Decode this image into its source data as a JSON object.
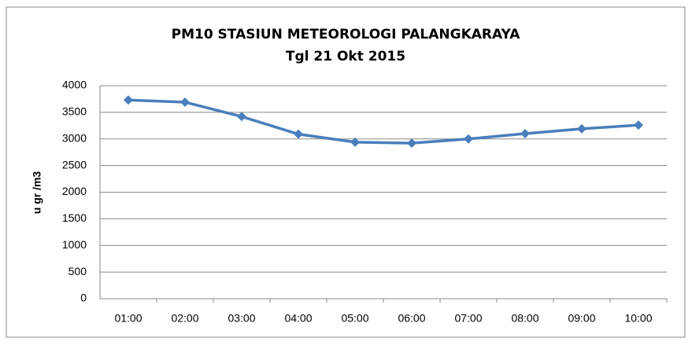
{
  "chart_data": {
    "type": "line",
    "title": "PM10 STASIUN METEOROLOGI PALANGKARAYA",
    "subtitle": "Tgl 21 Okt 2015",
    "y_label": "u gr /m3",
    "categories": [
      "01:00",
      "02:00",
      "03:00",
      "04:00",
      "05:00",
      "06:00",
      "07:00",
      "08:00",
      "09:00",
      "10:00"
    ],
    "series": [
      {
        "color": "#4a7ebb",
        "values": [
          3730,
          3690,
          3420,
          3090,
          2940,
          2920,
          3000,
          3100,
          3190,
          3260
        ]
      }
    ],
    "ylim": [
      0,
      4000
    ],
    "yticks": [
      0,
      500,
      1000,
      1500,
      2000,
      2500,
      3000,
      3500,
      4000
    ],
    "grid": true
  }
}
